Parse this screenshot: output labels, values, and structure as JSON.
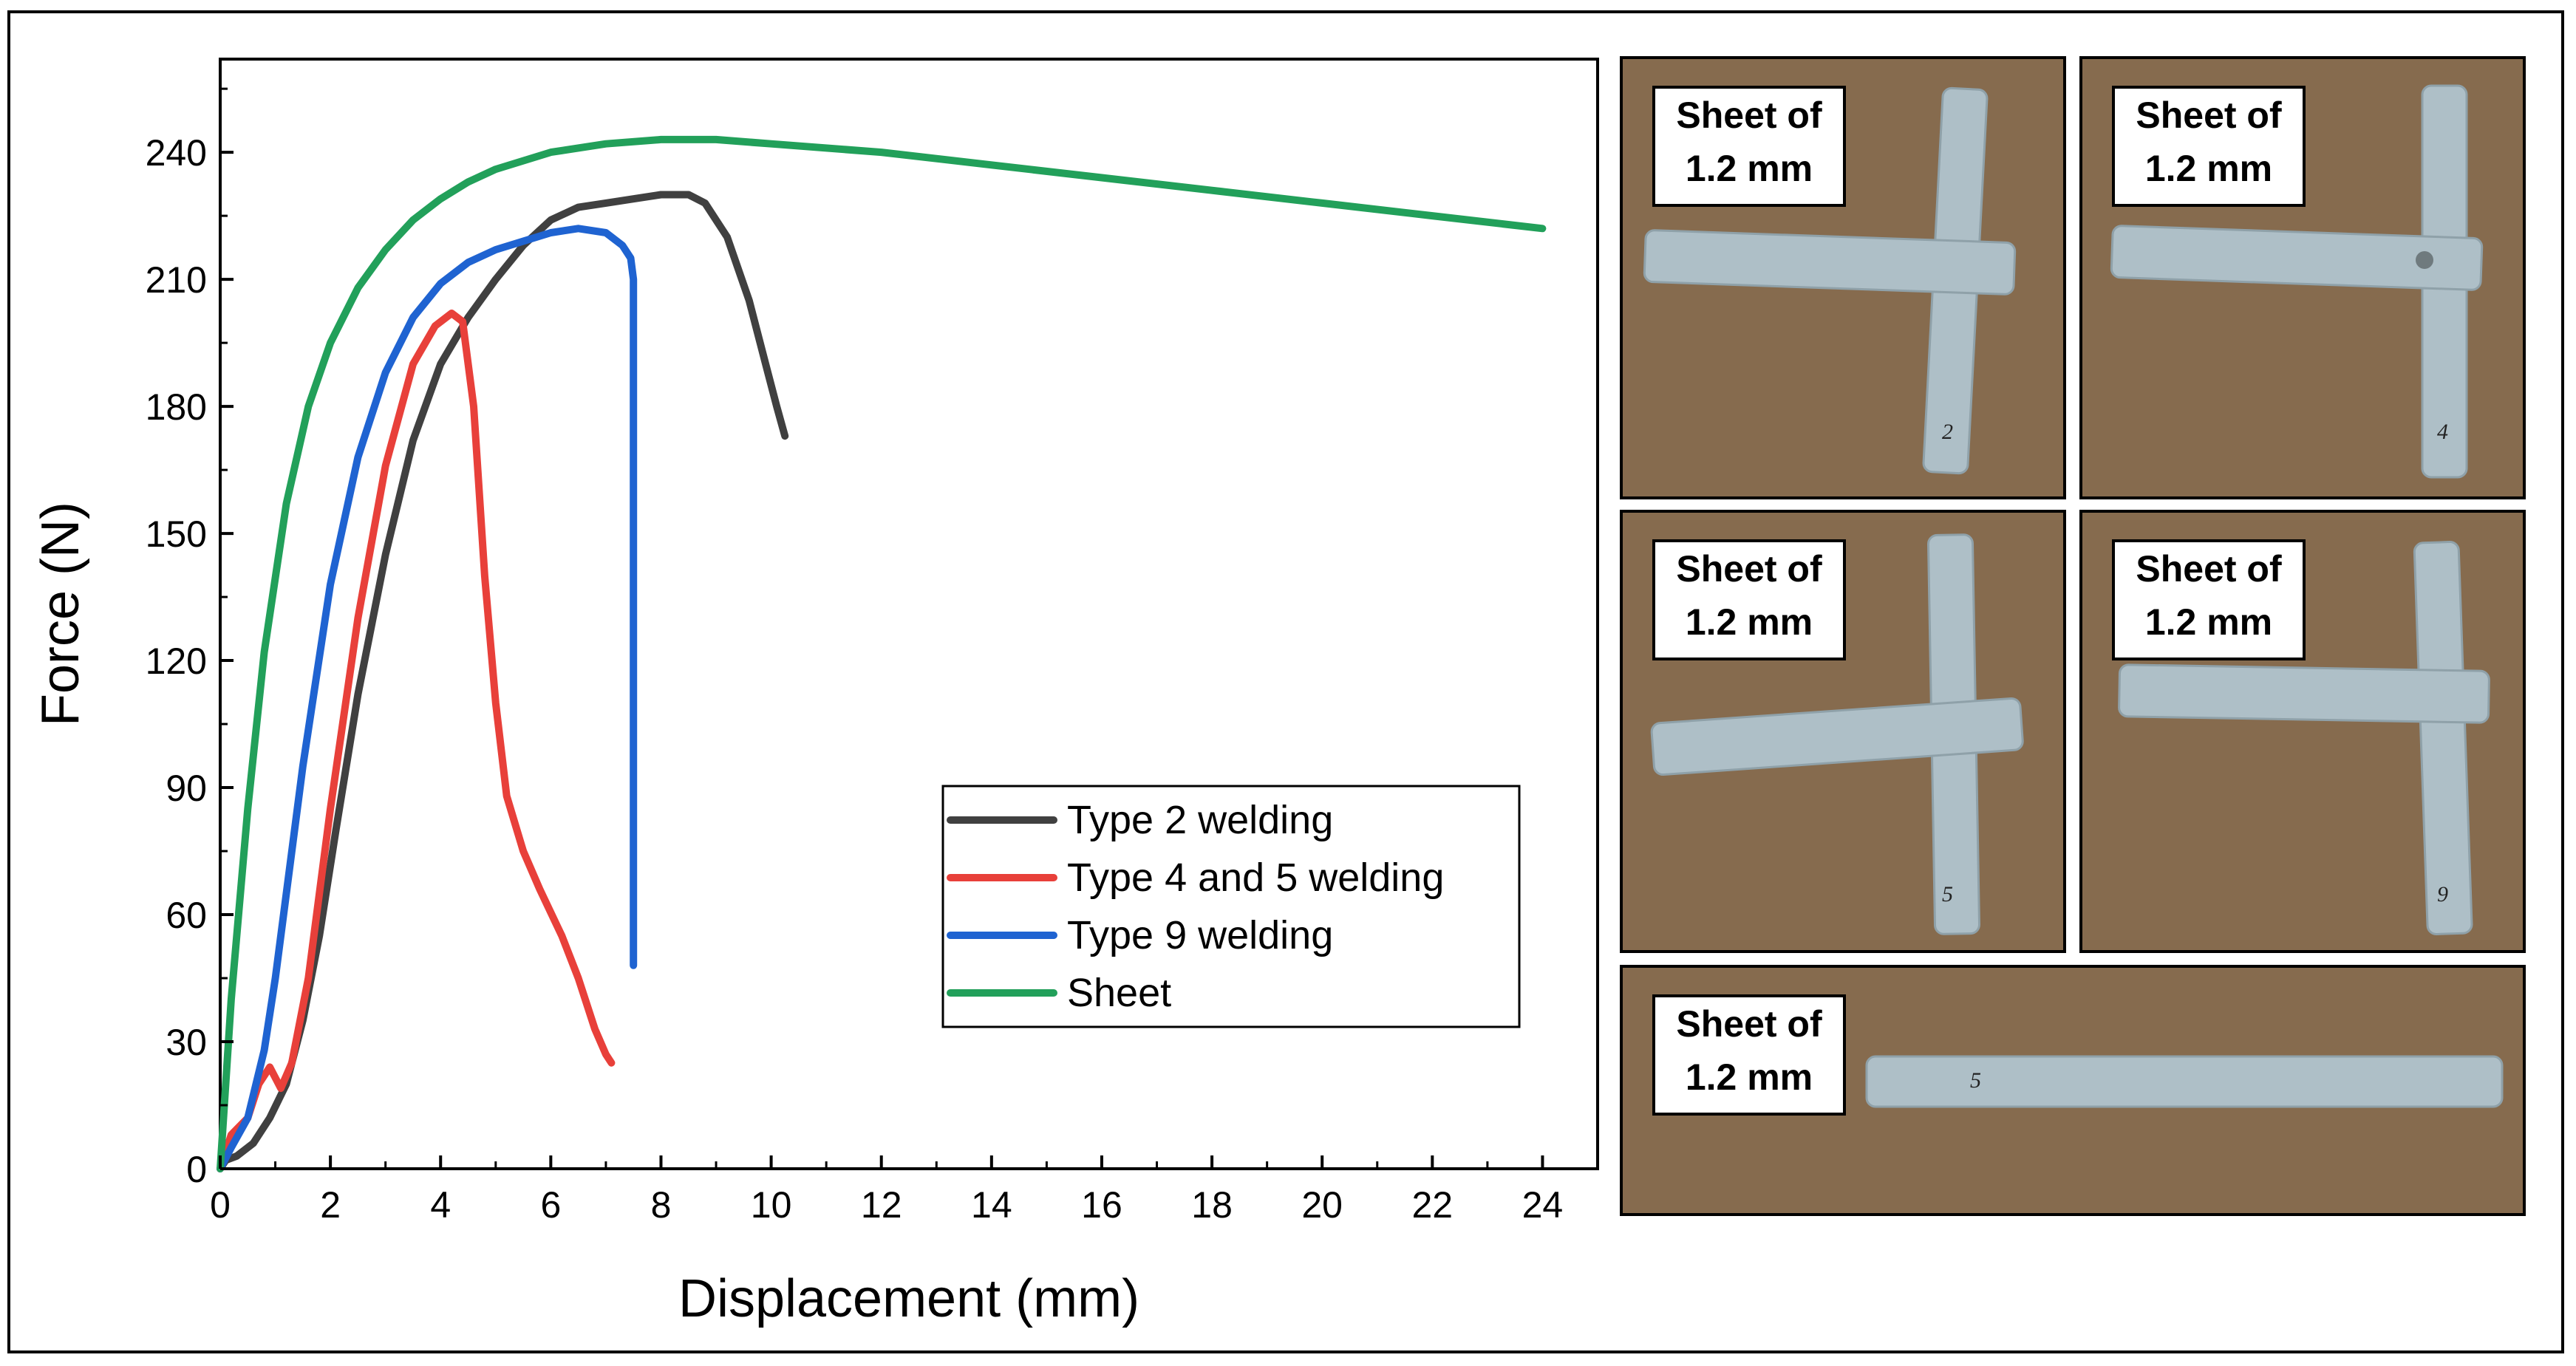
{
  "chart_data": {
    "type": "line",
    "xlabel": "Displacement (mm)",
    "ylabel": "Force (N)",
    "xlim": [
      0,
      25
    ],
    "ylim": [
      0,
      262
    ],
    "xticks": [
      0,
      2,
      4,
      6,
      8,
      10,
      12,
      14,
      16,
      18,
      20,
      22,
      24
    ],
    "yticks": [
      0,
      30,
      60,
      90,
      120,
      150,
      180,
      210,
      240
    ],
    "grid": false,
    "legend_position": "bottom-right",
    "series": [
      {
        "name": "Type 2 welding",
        "color": "#404040",
        "x": [
          0,
          0.1,
          0.3,
          0.6,
          0.9,
          1.2,
          1.5,
          1.8,
          2.1,
          2.5,
          3.0,
          3.5,
          4.0,
          4.5,
          5.0,
          5.5,
          6.0,
          6.5,
          7.0,
          7.5,
          8.0,
          8.5,
          8.8,
          9.2,
          9.6,
          9.9,
          10.1,
          10.25
        ],
        "values": [
          0,
          2,
          3,
          6,
          12,
          20,
          35,
          55,
          80,
          112,
          145,
          172,
          190,
          201,
          210,
          218,
          224,
          227,
          228,
          229,
          230,
          230,
          228,
          220,
          205,
          190,
          180,
          173
        ]
      },
      {
        "name": "Type 4 and 5 welding",
        "color": "#e8403a",
        "x": [
          0,
          0.2,
          0.5,
          0.7,
          0.9,
          1.1,
          1.3,
          1.6,
          2.0,
          2.5,
          3.0,
          3.5,
          3.9,
          4.2,
          4.4,
          4.6,
          4.8,
          5.0,
          5.2,
          5.5,
          5.8,
          6.2,
          6.5,
          6.8,
          7.0,
          7.1
        ],
        "values": [
          0,
          8,
          12,
          20,
          24,
          19,
          25,
          45,
          85,
          130,
          166,
          190,
          199,
          202,
          200,
          180,
          140,
          110,
          88,
          75,
          66,
          55,
          45,
          33,
          27,
          25
        ]
      },
      {
        "name": "Type 9 welding",
        "color": "#1f63d1",
        "x": [
          0,
          0.2,
          0.5,
          0.8,
          1.0,
          1.5,
          2.0,
          2.5,
          3.0,
          3.5,
          4.0,
          4.5,
          5.0,
          5.5,
          6.0,
          6.5,
          7.0,
          7.3,
          7.45,
          7.5,
          7.5
        ],
        "values": [
          0,
          5,
          12,
          28,
          45,
          95,
          138,
          168,
          188,
          201,
          209,
          214,
          217,
          219,
          221,
          222,
          221,
          218,
          215,
          210,
          48
        ]
      },
      {
        "name": "Sheet",
        "color": "#22a05a",
        "x": [
          0,
          0.2,
          0.5,
          0.8,
          1.2,
          1.6,
          2.0,
          2.5,
          3.0,
          3.5,
          4.0,
          4.5,
          5.0,
          6.0,
          7.0,
          8.0,
          9.0,
          10.0,
          12.0,
          14.0,
          16.0,
          18.0,
          20.0,
          22.0,
          24.0
        ],
        "values": [
          0,
          40,
          85,
          122,
          157,
          180,
          195,
          208,
          217,
          224,
          229,
          233,
          236,
          240,
          242,
          243,
          243,
          242,
          240,
          237,
          234,
          231,
          228,
          225,
          222
        ]
      }
    ]
  },
  "photos": [
    {
      "label_line1": "Sheet of",
      "label_line2": "1.2 mm",
      "marker": "2"
    },
    {
      "label_line1": "Sheet of",
      "label_line2": "1.2 mm",
      "marker": "4"
    },
    {
      "label_line1": "Sheet of",
      "label_line2": "1.2 mm",
      "marker": "5"
    },
    {
      "label_line1": "Sheet of",
      "label_line2": "1.2 mm",
      "marker": "9"
    },
    {
      "label_line1": "Sheet of",
      "label_line2": "1.2 mm",
      "marker": "5"
    }
  ],
  "colors": {
    "cardboard": "#866b4e",
    "strip": "#aebfc7"
  }
}
